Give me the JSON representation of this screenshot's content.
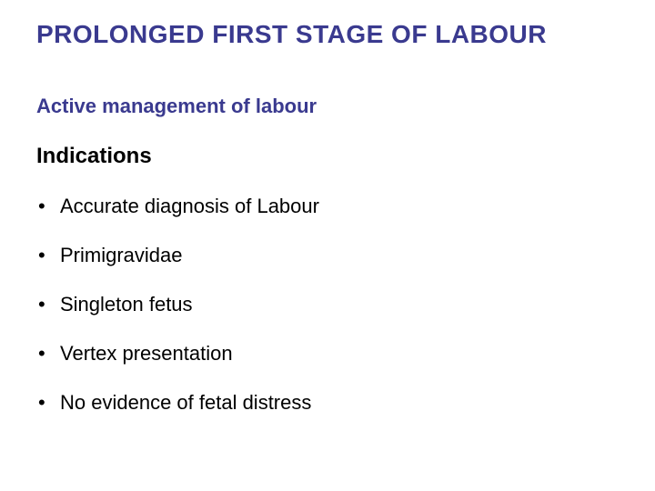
{
  "colors": {
    "title": "#3a3a8f",
    "subtitle": "#3a3a8f",
    "section": "#000000",
    "bullet_text": "#000000",
    "bullet_marker": "#000000",
    "background": "#ffffff"
  },
  "typography": {
    "title_fontsize": 28,
    "subtitle_fontsize": 22,
    "section_fontsize": 24,
    "bullet_fontsize": 22,
    "font_family": "Arial"
  },
  "title": "PROLONGED FIRST STAGE OF LABOUR",
  "subtitle": "Active management of labour",
  "section": "Indications",
  "bullets": [
    "Accurate diagnosis of Labour",
    "Primigravidae",
    "Singleton fetus",
    "Vertex presentation",
    "No evidence of fetal distress"
  ]
}
